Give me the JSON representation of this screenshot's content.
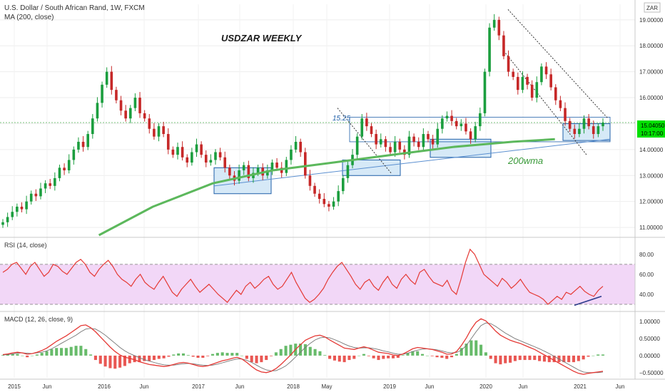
{
  "header": {
    "title": "U.S. Dollar / South African Rand, 1W, FXCM",
    "ma_label": "MA (200, close)",
    "currency_badge": "ZAR"
  },
  "annotations": {
    "main_title": "USDZAR WEEKLY",
    "level_label": "15.25",
    "wma_label": "200wma"
  },
  "price_tag": {
    "value": "15.04050",
    "timer": "10:17:00"
  },
  "colors": {
    "up": "#26a69a",
    "up_candle": "#1b9e3e",
    "down": "#c62828",
    "ma": "#5cb85c",
    "rsi": "#e53935",
    "rsi_band": "#f2d7f7",
    "macd": "#e53935",
    "signal": "#757575",
    "box": "#1f5fa8",
    "box_fill": "#d6e9f7",
    "price_tag": "#00e000"
  },
  "chart_data": [
    {
      "type": "candlestick",
      "panel": "price",
      "title": "U.S. Dollar / South African Rand, 1W, FXCM",
      "y_ticks": [
        "11.00000",
        "12.00000",
        "13.00000",
        "14.00000",
        "15.00000",
        "16.00000",
        "17.00000",
        "18.00000",
        "19.00000"
      ],
      "ylim": [
        10.7,
        19.6
      ],
      "x_ticks": [
        "2015",
        "Jun",
        "2016",
        "Jun",
        "2017",
        "Jun",
        "2018",
        "May",
        "2019",
        "Jun",
        "2020",
        "Jun",
        "2021",
        "Jun"
      ],
      "closes": [
        11.2,
        11.4,
        11.6,
        11.8,
        11.7,
        12.0,
        12.3,
        12.2,
        12.5,
        12.7,
        12.6,
        12.9,
        13.3,
        13.2,
        13.6,
        14.0,
        14.3,
        14.1,
        14.6,
        15.2,
        15.8,
        16.5,
        17.0,
        16.3,
        15.9,
        15.5,
        15.2,
        15.6,
        16.0,
        15.4,
        15.2,
        14.8,
        14.5,
        14.9,
        14.6,
        14.0,
        13.8,
        14.1,
        13.7,
        13.5,
        13.9,
        14.2,
        13.8,
        13.5,
        13.6,
        13.9,
        13.7,
        13.3,
        13.0,
        12.8,
        13.2,
        13.4,
        12.9,
        13.1,
        13.3,
        13.0,
        13.2,
        13.5,
        13.3,
        13.1,
        13.6,
        14.0,
        14.3,
        13.9,
        13.0,
        12.6,
        12.3,
        12.1,
        11.9,
        11.8,
        12.0,
        12.4,
        12.9,
        13.4,
        13.8,
        14.5,
        15.2,
        14.9,
        14.6,
        14.2,
        14.4,
        14.1,
        13.9,
        14.3,
        14.0,
        13.8,
        14.5,
        14.3,
        14.1,
        14.6,
        14.4,
        14.2,
        14.8,
        15.2,
        15.3,
        15.1,
        14.9,
        15.0,
        14.7,
        14.4,
        14.9,
        15.4,
        17.0,
        18.7,
        19.0,
        18.4,
        17.6,
        17.0,
        16.8,
        16.3,
        16.8,
        16.5,
        16.0,
        16.6,
        17.2,
        16.9,
        16.4,
        15.9,
        15.6,
        15.1,
        14.8,
        14.6,
        14.8,
        15.2,
        14.9,
        14.6,
        14.9,
        15.04
      ],
      "series": [
        {
          "name": "MA (200, close)",
          "x_norm": [
            0.16,
            0.25,
            0.35,
            0.45,
            0.55,
            0.65,
            0.75,
            0.85,
            0.92
          ],
          "values": [
            10.7,
            11.8,
            12.7,
            13.2,
            13.5,
            13.8,
            14.1,
            14.3,
            14.4
          ]
        }
      ],
      "annotations": [
        "USDZAR WEEKLY",
        "15.25",
        "200wma"
      ],
      "price_label": "15.04050"
    },
    {
      "type": "line",
      "panel": "rsi",
      "title": "RSI (14, close)",
      "y_ticks": [
        "40.00",
        "60.00",
        "80.00"
      ],
      "ylim": [
        25,
        92
      ],
      "band": [
        30,
        70
      ],
      "values": [
        62,
        65,
        70,
        72,
        66,
        60,
        68,
        72,
        65,
        58,
        62,
        70,
        68,
        63,
        60,
        66,
        72,
        75,
        70,
        62,
        58,
        65,
        70,
        74,
        68,
        60,
        55,
        52,
        48,
        55,
        60,
        52,
        48,
        45,
        52,
        58,
        50,
        42,
        38,
        45,
        50,
        55,
        48,
        42,
        46,
        50,
        45,
        40,
        36,
        32,
        38,
        44,
        40,
        48,
        52,
        46,
        50,
        55,
        58,
        50,
        45,
        48,
        55,
        62,
        52,
        44,
        36,
        32,
        35,
        40,
        46,
        55,
        62,
        68,
        72,
        65,
        58,
        50,
        45,
        52,
        55,
        48,
        44,
        52,
        58,
        50,
        46,
        55,
        60,
        54,
        50,
        62,
        65,
        58,
        52,
        50,
        48,
        54,
        44,
        40,
        55,
        72,
        85,
        80,
        70,
        60,
        56,
        52,
        48,
        56,
        52,
        46,
        50,
        55,
        48,
        42,
        40,
        38,
        35,
        30,
        34,
        38,
        35,
        42,
        40,
        44,
        48,
        43,
        40,
        38,
        44,
        48
      ]
    },
    {
      "type": "histogram",
      "panel": "macd",
      "title": "MACD (12, 26, close, 9)",
      "y_ticks": [
        "1.00000",
        "0.50000",
        "0.00000",
        "−0.50000"
      ],
      "ylim": [
        -0.65,
        1.15
      ],
      "series": [
        {
          "name": "MACD",
          "values": [
            0.03,
            0.05,
            0.08,
            0.1,
            0.08,
            0.04,
            0.06,
            0.1,
            0.15,
            0.22,
            0.32,
            0.42,
            0.5,
            0.58,
            0.68,
            0.78,
            0.88,
            0.9,
            0.82,
            0.7,
            0.55,
            0.4,
            0.25,
            0.12,
            0.02,
            -0.05,
            -0.08,
            -0.12,
            -0.18,
            -0.22,
            -0.26,
            -0.28,
            -0.3,
            -0.32,
            -0.3,
            -0.26,
            -0.22,
            -0.2,
            -0.22,
            -0.26,
            -0.3,
            -0.32,
            -0.3,
            -0.25,
            -0.2,
            -0.15,
            -0.12,
            -0.08,
            -0.05,
            -0.1,
            -0.2,
            -0.32,
            -0.42,
            -0.48,
            -0.5,
            -0.46,
            -0.38,
            -0.26,
            -0.12,
            0.02,
            0.18,
            0.32,
            0.45,
            0.52,
            0.58,
            0.6,
            0.55,
            0.46,
            0.38,
            0.3,
            0.22,
            0.2,
            0.18,
            0.22,
            0.26,
            0.22,
            0.16,
            0.1,
            0.08,
            0.06,
            0.02,
            0.0,
            0.05,
            0.12,
            0.2,
            0.24,
            0.22,
            0.2,
            0.18,
            0.14,
            0.1,
            0.04,
            0.05,
            0.12,
            0.3,
            0.52,
            0.78,
            0.98,
            1.08,
            1.02,
            0.88,
            0.72,
            0.6,
            0.52,
            0.45,
            0.4,
            0.36,
            0.3,
            0.24,
            0.18,
            0.1,
            0.02,
            -0.06,
            -0.14,
            -0.22,
            -0.3,
            -0.38,
            -0.46,
            -0.52,
            -0.55,
            -0.52,
            -0.5,
            -0.48,
            -0.46
          ]
        },
        {
          "name": "Signal",
          "values": [
            0.02,
            0.03,
            0.05,
            0.07,
            0.08,
            0.07,
            0.06,
            0.08,
            0.1,
            0.14,
            0.2,
            0.28,
            0.36,
            0.44,
            0.52,
            0.6,
            0.7,
            0.78,
            0.8,
            0.78,
            0.7,
            0.6,
            0.48,
            0.36,
            0.24,
            0.14,
            0.06,
            0.0,
            -0.06,
            -0.12,
            -0.16,
            -0.2,
            -0.24,
            -0.27,
            -0.28,
            -0.28,
            -0.26,
            -0.24,
            -0.23,
            -0.24,
            -0.26,
            -0.28,
            -0.29,
            -0.28,
            -0.25,
            -0.21,
            -0.17,
            -0.13,
            -0.1,
            -0.1,
            -0.14,
            -0.2,
            -0.28,
            -0.36,
            -0.42,
            -0.45,
            -0.44,
            -0.38,
            -0.3,
            -0.18,
            -0.04,
            0.1,
            0.24,
            0.36,
            0.46,
            0.52,
            0.54,
            0.52,
            0.47,
            0.41,
            0.34,
            0.28,
            0.24,
            0.22,
            0.23,
            0.23,
            0.21,
            0.18,
            0.14,
            0.11,
            0.07,
            0.04,
            0.04,
            0.07,
            0.12,
            0.16,
            0.19,
            0.2,
            0.19,
            0.17,
            0.14,
            0.1,
            0.08,
            0.09,
            0.16,
            0.3,
            0.5,
            0.7,
            0.88,
            0.96,
            0.94,
            0.86,
            0.76,
            0.66,
            0.58,
            0.5,
            0.44,
            0.38,
            0.32,
            0.26,
            0.2,
            0.13,
            0.06,
            -0.02,
            -0.1,
            -0.18,
            -0.26,
            -0.34,
            -0.42,
            -0.48,
            -0.5,
            -0.5,
            -0.5,
            -0.48
          ]
        }
      ]
    }
  ]
}
